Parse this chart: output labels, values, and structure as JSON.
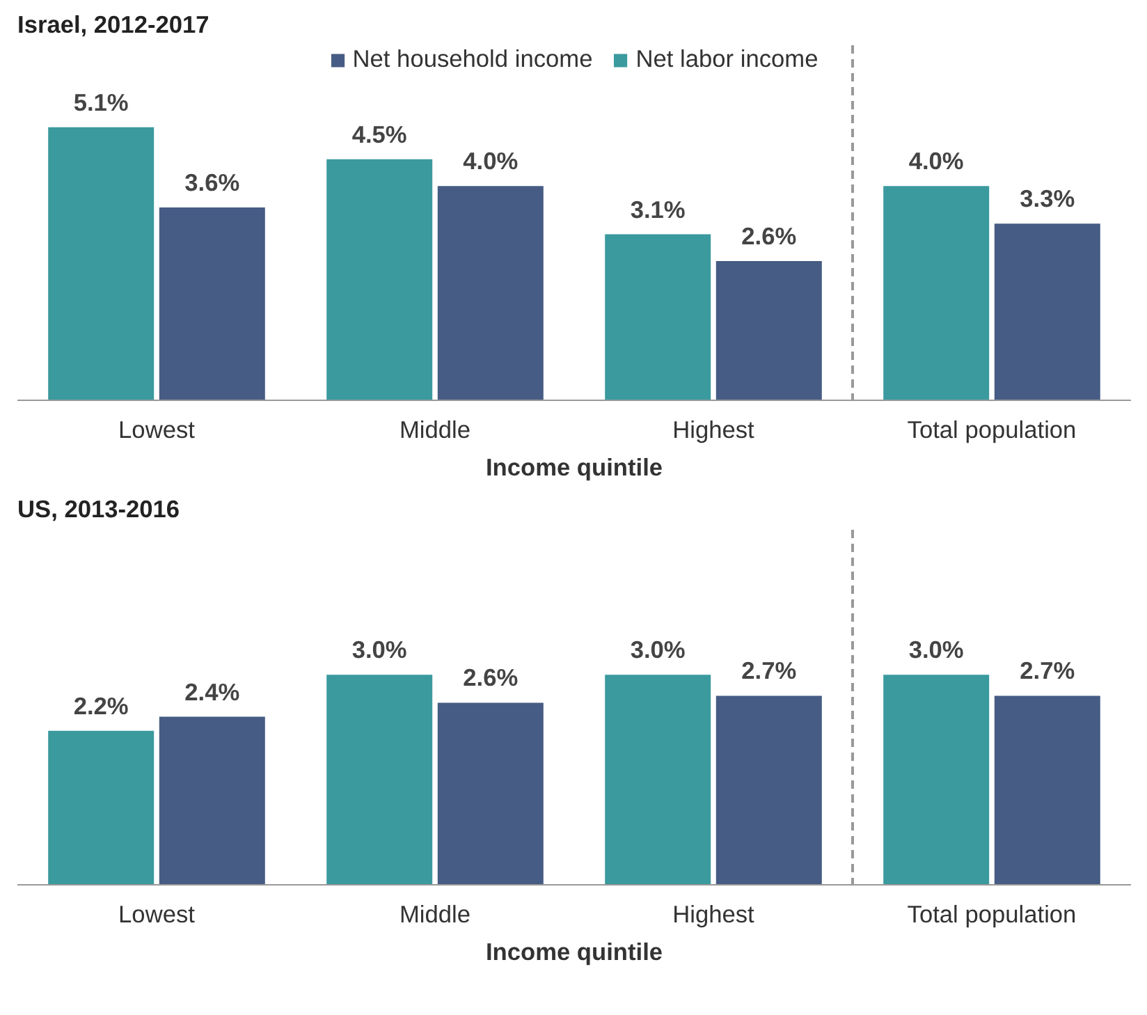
{
  "chart_data": [
    {
      "type": "bar",
      "title": "Israel, 2012-2017",
      "xlabel": "Income quintile",
      "categories": [
        "Lowest",
        "Middle",
        "Highest",
        "Total population"
      ],
      "tick_labels": "x",
      "grid": false,
      "legend": "top",
      "series": [
        {
          "name": "Net labor income",
          "color": "#3a9a9e",
          "values": [
            5.1,
            4.5,
            3.1,
            4.0
          ],
          "value_labels": [
            "5.1%",
            "4.5%",
            "3.1%",
            "4.0%"
          ]
        },
        {
          "name": "Net household income",
          "color": "#465c84",
          "values": [
            3.6,
            4.0,
            2.6,
            3.3
          ],
          "value_labels": [
            "3.6%",
            "4.0%",
            "2.6%",
            "3.3%"
          ]
        }
      ]
    },
    {
      "type": "bar",
      "title": "US, 2013-2016",
      "xlabel": "Income quintile",
      "categories": [
        "Lowest",
        "Middle",
        "Highest",
        "Total population"
      ],
      "tick_labels": "x",
      "grid": false,
      "series": [
        {
          "color": "#3a9a9e",
          "values": [
            2.2,
            3.0,
            3.0,
            3.0
          ],
          "value_labels": [
            "2.2%",
            "3.0%",
            "3.0%",
            "3.0%"
          ]
        },
        {
          "color": "#465c84",
          "values": [
            2.4,
            2.6,
            2.7,
            2.7
          ],
          "value_labels": [
            "2.4%",
            "2.6%",
            "2.7%",
            "2.7%"
          ]
        }
      ]
    }
  ]
}
